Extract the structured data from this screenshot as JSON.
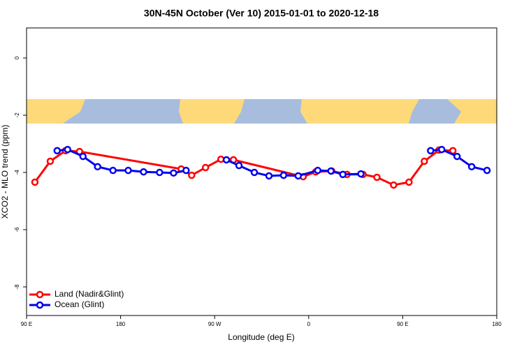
{
  "chart_data": {
    "type": "line",
    "title": "30N-45N October (Ver 10)   2015-01-01 to 2020-12-18",
    "x_label": "Longitude (deg E)",
    "y_label": "XCO2 - MLO trend (ppm)",
    "xlim": [
      90,
      540
    ],
    "ylim": [
      -9,
      1.05
    ],
    "xticks": [
      {
        "value": 90,
        "label": "90 E"
      },
      {
        "value": 180,
        "label": "180"
      },
      {
        "value": 270,
        "label": "90 W"
      },
      {
        "value": 360,
        "label": "0"
      },
      {
        "value": 450,
        "label": "90 E"
      },
      {
        "value": 540,
        "label": "180"
      }
    ],
    "yticks": [
      0,
      -2,
      -4,
      -6,
      -8
    ],
    "legend": "bottom-left",
    "series": [
      {
        "name": "Land (Nadir&Glint)",
        "color": "#ff0000",
        "x": [
          98,
          112.7,
          127.3,
          140.7,
          238,
          248,
          261.3,
          276,
          288,
          354.7,
          366.7,
          382,
          396.7,
          412,
          425.3,
          441.3,
          456,
          470.7,
          484.7,
          498
        ],
        "values": [
          -4.34,
          -3.61,
          -3.24,
          -3.27,
          -3.88,
          -4.1,
          -3.83,
          -3.54,
          -3.56,
          -4.15,
          -3.98,
          -3.95,
          -4.07,
          -4.07,
          -4.17,
          -4.44,
          -4.34,
          -3.61,
          -3.22,
          -3.24
        ]
      },
      {
        "name": "Ocean (Glint)",
        "color": "#0000ee",
        "x": [
          119.3,
          129.3,
          144,
          158,
          172.7,
          187.3,
          202,
          217.3,
          230.7,
          242.7,
          null,
          281.3,
          293.3,
          308,
          322,
          336,
          350,
          368.7,
          381.3,
          392.7,
          410,
          null,
          476.7,
          487.3,
          502,
          516,
          530.7
        ],
        "values": [
          -3.24,
          -3.2,
          -3.44,
          -3.8,
          -3.93,
          -3.93,
          -3.98,
          -4.0,
          -4.02,
          -3.93,
          null,
          -3.56,
          -3.76,
          -4.0,
          -4.12,
          -4.1,
          -4.12,
          -3.93,
          -3.95,
          -4.07,
          -4.05,
          null,
          -3.24,
          -3.2,
          -3.44,
          -3.8,
          -3.93
        ]
      }
    ]
  }
}
